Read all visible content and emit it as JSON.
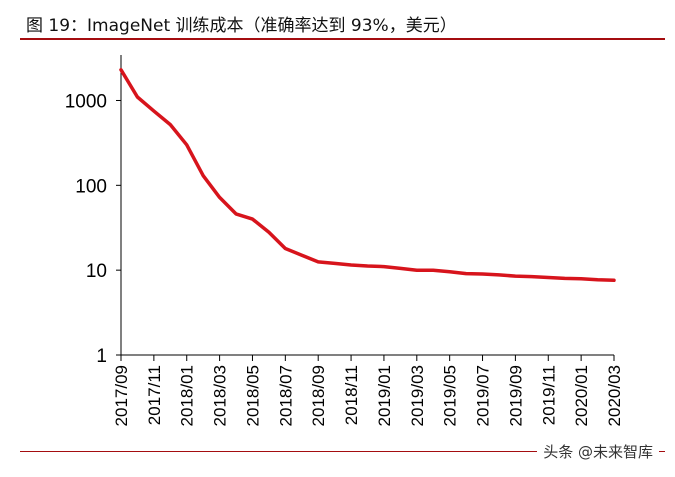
{
  "header": {
    "title": "图 19：ImageNet 训练成本（准确率达到 93%，美元）"
  },
  "watermark": "头条 @未来智库",
  "colors": {
    "line": "#d7141c",
    "accent": "#a40d10",
    "axis": "#000000"
  },
  "chart_data": {
    "type": "line",
    "title": "",
    "xlabel": "",
    "ylabel": "",
    "yscale": "log",
    "ylim": [
      1,
      3000
    ],
    "yticks": [
      1,
      10,
      100,
      1000
    ],
    "ytick_labels": [
      "1",
      "10",
      "100",
      "1000"
    ],
    "xtick_labels": [
      "2017/09",
      "2017/11",
      "2018/01",
      "2018/03",
      "2018/05",
      "2018/07",
      "2018/09",
      "2018/11",
      "2019/01",
      "2019/03",
      "2019/05",
      "2019/07",
      "2019/09",
      "2019/11",
      "2020/01",
      "2020/03"
    ],
    "grid": false,
    "legend": "none",
    "series": [
      {
        "x": [
          "2017/09",
          "2017/10",
          "2017/11",
          "2017/12",
          "2018/01",
          "2018/02",
          "2018/03",
          "2018/04",
          "2018/05",
          "2018/06",
          "2018/07",
          "2018/08",
          "2018/09",
          "2018/10",
          "2018/11",
          "2018/12",
          "2019/01",
          "2019/02",
          "2019/03",
          "2019/04",
          "2019/05",
          "2019/06",
          "2019/07",
          "2019/08",
          "2019/09",
          "2019/10",
          "2019/11",
          "2019/12",
          "2020/01",
          "2020/02",
          "2020/03"
        ],
        "values": [
          2300,
          1100,
          750,
          520,
          300,
          130,
          72,
          46,
          40,
          28,
          18,
          15,
          12.5,
          12,
          11.5,
          11.2,
          11,
          10.5,
          10,
          10,
          9.6,
          9.1,
          9,
          8.8,
          8.5,
          8.4,
          8.2,
          8,
          7.9,
          7.7,
          7.6
        ]
      }
    ]
  }
}
